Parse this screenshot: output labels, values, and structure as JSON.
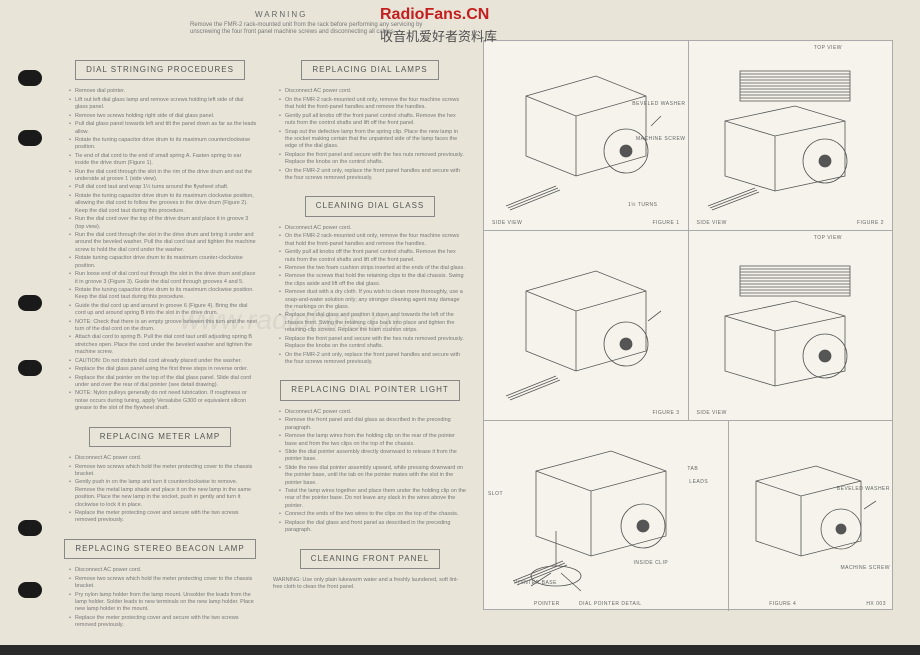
{
  "watermark": {
    "site": "RadioFans.CN",
    "tagline": "收音机爱好者资料库",
    "center": "www.radiofans.cn"
  },
  "warning": {
    "heading": "WARNING",
    "body": "Remove the FMR-2 rack-mounted unit from the rack before performing any servicing by unscrewing the four front panel machine screws and disconnecting all cables."
  },
  "left": {
    "sec1": {
      "title": "DIAL STRINGING PROCEDURES",
      "items": [
        "Remove dial pointer.",
        "Lift out left dial glass lamp and remove screws holding left side of dial glass panel.",
        "Remove two screws holding right side of dial glass panel.",
        "Pull dial glass panel towards left and tilt the panel down as far as the leads allow.",
        "Rotate the tuning capacitor drive drum to its maximum counterclockwise position.",
        "Tie end of dial cord to the end of small spring A. Fasten spring to ear inside the drive drum (Figure 1).",
        "Run the dial cord through the slot in the rim of the drive drum and out the underside at groove 1 (side view).",
        "Pull dial cord taut and wrap 1½ turns around the flywheel shaft.",
        "Rotate the tuning capacitor drive drum to its maximum clockwise position, allowing the dial cord to follow the grooves in the drive drum (Figure 2). Keep the dial cord taut during this procedure.",
        "Run the dial cord over the top of the drive drum and place it in groove 3 (top view).",
        "Run the dial cord through the slot in the drive drum and bring it under and around the beveled washer. Pull the dial cord taut and tighten the machine screw to hold the dial cord under the washer.",
        "Rotate tuning capacitor drive drum to its maximum counter-clockwise position.",
        "Run loose end of dial cord out through the slot in the drive drum and place it in groove 3 (Figure 3). Guide the dial cord through grooves 4 and 5.",
        "Rotate the tuning capacitor drive drum to its maximum clockwise position. Keep the dial cord taut during this procedure.",
        "Guide the dial cord up and around in groove 6 (Figure 4). Bring the dial cord up and around spring B into the slot in the drive drum.",
        "NOTE: Check that there is an empty groove between this turn and the next turn of the dial cord on the drum.",
        "Attach dial cord to spring B. Pull the dial cord taut until adjusting spring B stretches open. Place the cord under the beveled washer and tighten the machine screw.",
        "CAUTION: Do not disturb dial cord already placed under the washer.",
        "Replace the dial glass panel using the first three steps in reverse order.",
        "Replace the dial pointer on the top of the dial glass panel. Slide dial cord under and over the rear of dial pointer (see detail drawing).",
        "NOTE: Nylon pulleys generally do not need lubrication. If roughness or noise occurs during tuning, apply Versalube G300 or equivalent silicon grease to the slot of the flywheel shaft."
      ]
    },
    "sec2": {
      "title": "REPLACING METER LAMP",
      "items": [
        "Disconnect AC power cord.",
        "Remove two screws which hold the meter protecting cover to the chassis bracket.",
        "Gently push in on the lamp and turn it counterclockwise to remove. Remove the metal lamp shade and place it on the new lamp in the same position. Place the new lamp in the socket, push in gently and turn it clockwise to lock it in place.",
        "Replace the meter protecting cover and secure with the two screws removed previously."
      ]
    },
    "sec3": {
      "title": "REPLACING STEREO BEACON LAMP",
      "items": [
        "Disconnect AC power cord.",
        "Remove two screws which hold the meter protecting cover to the chassis bracket.",
        "Pry nylon lamp holder from the lamp mount. Unsolder the leads from the lamp holder. Solder leads to new terminals on the new lamp holder. Place new lamp holder in the mount.",
        "Replace the meter protecting cover and secure with the two screws removed previously."
      ]
    }
  },
  "mid": {
    "sec1": {
      "title": "REPLACING DIAL LAMPS",
      "items": [
        "Disconnect AC power cord.",
        "On the FMR-2 rack-mounted unit only, remove the four machine screws that hold the front-panel handles and remove the handles.",
        "Gently pull all knobs off the front panel control shafts. Remove the hex nuts from the control shafts and lift off the front panel.",
        "Snap out the defective lamp from the spring clip. Place the new lamp in the socket making certain that the unpainted side of the lamp faces the edge of the dial glass.",
        "Replace the front panel and secure with the hex nuts removed previously. Replace the knobs on the control shafts.",
        "On the FMR-2 unit only, replace the front panel handles and secure with the four screws removed previously."
      ]
    },
    "sec2": {
      "title": "CLEANING DIAL GLASS",
      "items": [
        "Disconnect AC power cord.",
        "On the FMR-2 rack-mounted unit only, remove the four machine screws that hold the front-panel handles and remove the handles.",
        "Gently pull all knobs off the front panel control shafts. Remove the hex nuts from the control shafts and lift off the front panel.",
        "Remove the two foam cushion strips inserted at the ends of the dial glass.",
        "Remove the screws that hold the retaining clips to the dial chassis. Swing the clips aside and lift off the dial glass.",
        "Remove dust with a dry cloth. If you wish to clean more thoroughly, use a soap-and-water solution only; any stronger cleaning agent may damage the markings on the glass.",
        "Replace the dial glass and position it down and towards the left of the chassis front. Swing the retaining clips back into place and tighten the retaining-clip screws. Replace the foam cushion strips.",
        "Replace the front panel and secure with the hex nuts removed previously. Replace the knobs on the control shafts.",
        "On the FMR-2 unit only, replace the front panel handles and secure with the four screws removed previously."
      ]
    },
    "sec3": {
      "title": "REPLACING DIAL POINTER LIGHT",
      "items": [
        "Disconnect AC power cord.",
        "Remove the front panel and dial glass as described in the preceding paragraph.",
        "Remove the lamp wires from the holding clip on the rear of the pointer base and from the two clips on the top of the chassis.",
        "Slide the dial pointer assembly directly downward to release it from the pointer base.",
        "Slide the new dial pointer assembly upward, while pressing downward on the pointer base, until the tab on the pointer mates with the slot in the pointer base.",
        "Twist the lamp wires together and place them under the holding clip on the rear of the pointer base. Do not leave any slack in the wires above the pointer.",
        "Connect the ends of the two wires to the clips on the top of the chassis.",
        "Replace the dial glass and front panel as described in the preceding paragraph."
      ]
    },
    "sec4": {
      "title": "CLEANING FRONT PANEL",
      "warning": "WARNING: Use only plain lukewarm water and a freshly laundered, soft lint-free cloth to clean the front panel."
    }
  },
  "figures": {
    "labels": {
      "top_view": "TOP VIEW",
      "side_view": "SIDE VIEW",
      "fig1": "FIGURE 1",
      "fig2": "FIGURE 2",
      "fig3": "FIGURE 3",
      "fig4": "FIGURE 4",
      "beveled_washer": "BEVELED WASHER",
      "machine_screw": "MACHINE SCREW",
      "turns": "1½ TURNS",
      "tab": "TAB",
      "leads": "LEADS",
      "slot": "SLOT",
      "inside_clip": "INSIDE CLIP",
      "pointer_base": "POINTER BASE",
      "pointer": "POINTER",
      "dial_pointer_detail": "DIAL POINTER DETAIL",
      "sheet": "HX 003"
    }
  },
  "colors": {
    "paper": "#e8e4d8",
    "figpaper": "#f5f3eb",
    "text": "#555555",
    "faint": "#777777",
    "border": "#aaaaaa",
    "red": "#c41e1e",
    "black": "#1a1a1a"
  }
}
